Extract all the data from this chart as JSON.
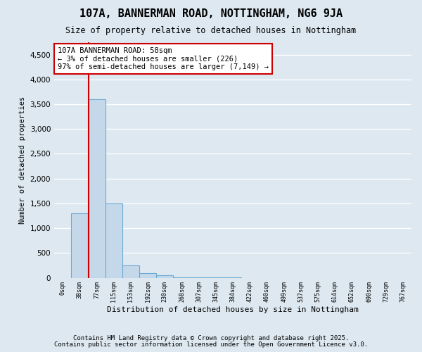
{
  "title": "107A, BANNERMAN ROAD, NOTTINGHAM, NG6 9JA",
  "subtitle": "Size of property relative to detached houses in Nottingham",
  "xlabel": "Distribution of detached houses by size in Nottingham",
  "ylabel": "Number of detached properties",
  "bar_color": "#c5d8ea",
  "bar_edge_color": "#6aaad4",
  "background_color": "#dde8f0",
  "annotation_box_color": "#cc0000",
  "annotation_text": "107A BANNERMAN ROAD: 58sqm\n← 3% of detached houses are smaller (226)\n97% of semi-detached houses are larger (7,149) →",
  "ylim": [
    0,
    4750
  ],
  "categories": [
    "0sqm",
    "38sqm",
    "77sqm",
    "115sqm",
    "153sqm",
    "192sqm",
    "230sqm",
    "268sqm",
    "307sqm",
    "345sqm",
    "384sqm",
    "422sqm",
    "460sqm",
    "499sqm",
    "537sqm",
    "575sqm",
    "614sqm",
    "652sqm",
    "690sqm",
    "729sqm",
    "767sqm"
  ],
  "values": [
    0,
    1300,
    3600,
    1500,
    250,
    100,
    50,
    15,
    8,
    4,
    2,
    1,
    1,
    0,
    0,
    0,
    0,
    0,
    0,
    0,
    0
  ],
  "footer1": "Contains HM Land Registry data © Crown copyright and database right 2025.",
  "footer2": "Contains public sector information licensed under the Open Government Licence v3.0.",
  "red_line_x": 1.53,
  "grid_color": "#ffffff",
  "yticks": [
    0,
    500,
    1000,
    1500,
    2000,
    2500,
    3000,
    3500,
    4000,
    4500
  ]
}
